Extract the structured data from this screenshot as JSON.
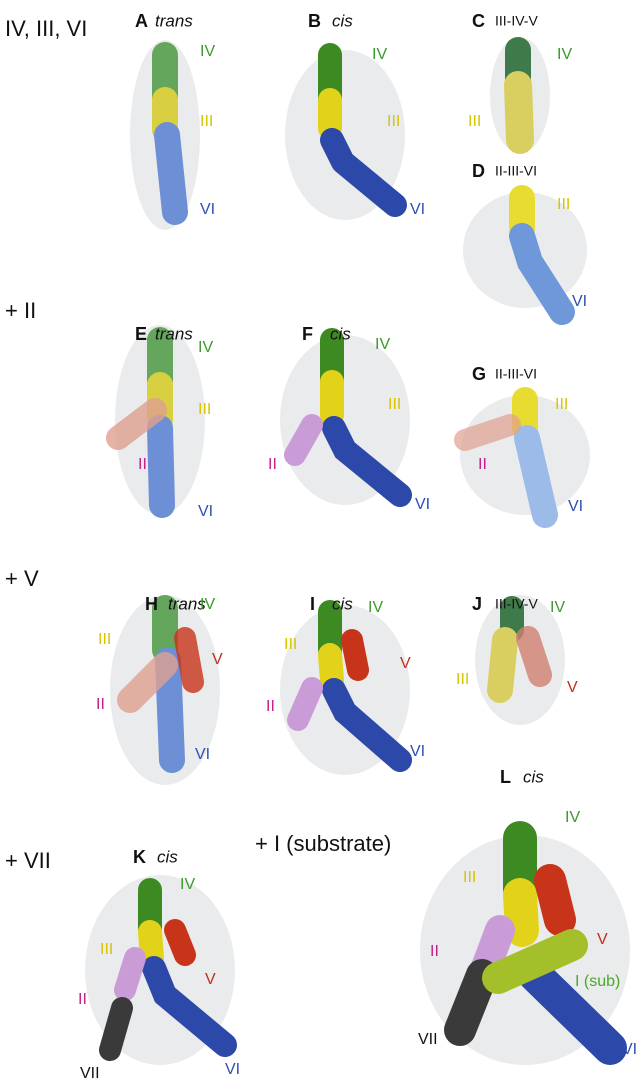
{
  "row_labels": [
    "IV, III, VI",
    "+ II",
    "+ V",
    "+ VII",
    "+ I (substrate)"
  ],
  "panels": [
    {
      "letter": "A",
      "title": "trans",
      "labels": [
        "IV",
        "III",
        "VI"
      ]
    },
    {
      "letter": "B",
      "title": "cis",
      "labels": [
        "IV",
        "III",
        "VI"
      ]
    },
    {
      "letter": "C",
      "title": "III-IV-V",
      "labels": [
        "IV",
        "III"
      ]
    },
    {
      "letter": "D",
      "title": "II-III-VI",
      "labels": [
        "III",
        "VI"
      ]
    },
    {
      "letter": "E",
      "title": "trans",
      "labels": [
        "IV",
        "III",
        "II",
        "VI"
      ]
    },
    {
      "letter": "F",
      "title": "cis",
      "labels": [
        "IV",
        "III",
        "II",
        "VI"
      ]
    },
    {
      "letter": "G",
      "title": "II-III-VI",
      "labels": [
        "III",
        "II",
        "VI"
      ]
    },
    {
      "letter": "H",
      "title": "trans",
      "labels": [
        "IV",
        "III",
        "V",
        "II",
        "VI"
      ]
    },
    {
      "letter": "I",
      "title": "cis",
      "labels": [
        "IV",
        "III",
        "V",
        "II",
        "VI"
      ]
    },
    {
      "letter": "J",
      "title": "III-IV-V",
      "labels": [
        "IV",
        "III",
        "V"
      ]
    },
    {
      "letter": "K",
      "title": "cis",
      "labels": [
        "IV",
        "III",
        "V",
        "II",
        "VII",
        "VI"
      ]
    },
    {
      "letter": "L",
      "title": "cis",
      "labels": [
        "IV",
        "III",
        "V",
        "II",
        "I (sub)",
        "VII",
        "VI"
      ]
    }
  ]
}
